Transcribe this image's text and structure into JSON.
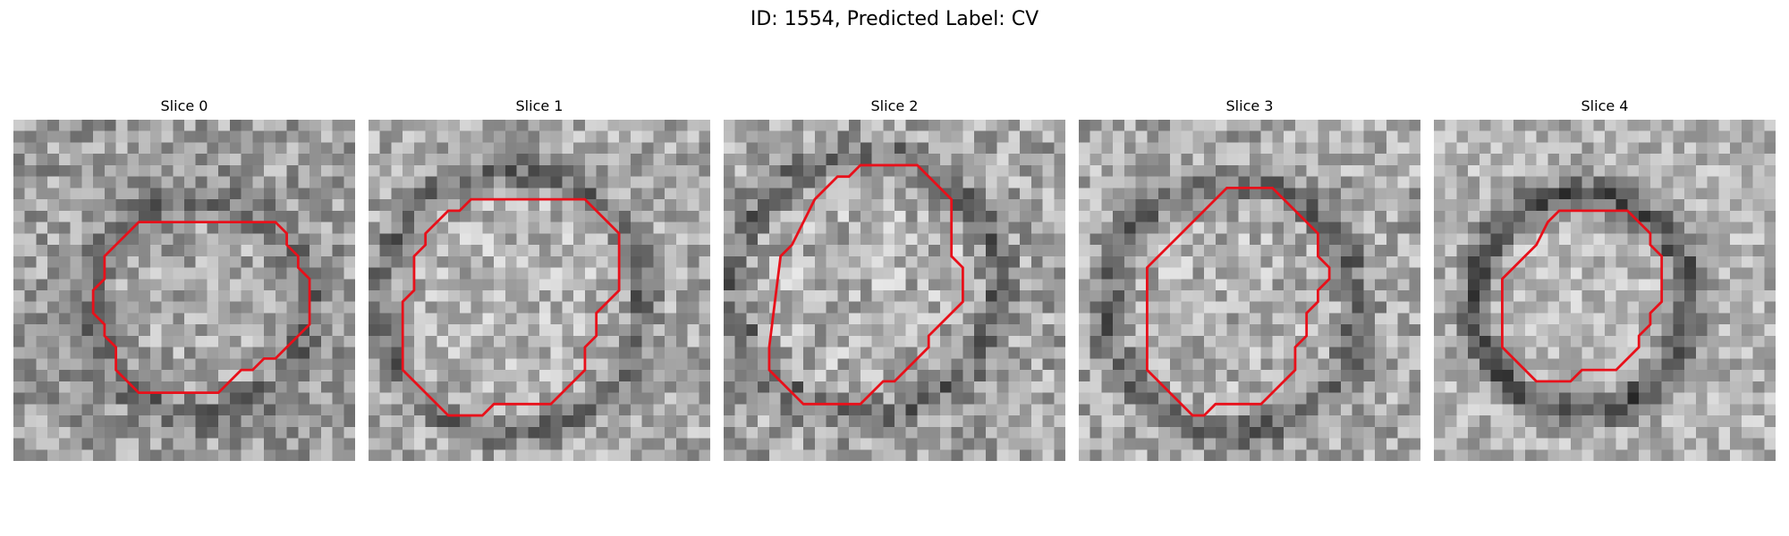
{
  "figure": {
    "title": "ID: 1554, Predicted Label: CV"
  },
  "colors": {
    "contour": "#e8101a",
    "background": "#ffffff"
  },
  "slices": [
    {
      "title": "Slice 0",
      "seed": 11,
      "base": 158,
      "ringDark": 45,
      "innerBright": 8,
      "noise": 52,
      "contour": [
        [
          17,
          9
        ],
        [
          23,
          9
        ],
        [
          24,
          10
        ],
        [
          24,
          11
        ],
        [
          25,
          12
        ],
        [
          25,
          13
        ],
        [
          26,
          14
        ],
        [
          26,
          18
        ],
        [
          25,
          19
        ],
        [
          24,
          20
        ],
        [
          23,
          21
        ],
        [
          22,
          21
        ],
        [
          21,
          22
        ],
        [
          20,
          22
        ],
        [
          19,
          23
        ],
        [
          18,
          24
        ],
        [
          14,
          24
        ],
        [
          13,
          24
        ],
        [
          11,
          24
        ],
        [
          10,
          23
        ],
        [
          9,
          22
        ],
        [
          9,
          20
        ],
        [
          8,
          19
        ],
        [
          8,
          18
        ],
        [
          7,
          17
        ],
        [
          7,
          15
        ],
        [
          8,
          14
        ],
        [
          8,
          12
        ],
        [
          9,
          11
        ],
        [
          10,
          10
        ],
        [
          11,
          9
        ],
        [
          12,
          9
        ]
      ],
      "ring": {
        "cx": 16.5,
        "cy": 16.5,
        "r": 9.5
      }
    },
    {
      "title": "Slice 1",
      "seed": 23,
      "base": 170,
      "ringDark": 60,
      "innerBright": 10,
      "noise": 50,
      "contour": [
        [
          11,
          7
        ],
        [
          19,
          7
        ],
        [
          20,
          8
        ],
        [
          21,
          9
        ],
        [
          22,
          10
        ],
        [
          22,
          15
        ],
        [
          21,
          16
        ],
        [
          20,
          17
        ],
        [
          20,
          19
        ],
        [
          19,
          20
        ],
        [
          19,
          22
        ],
        [
          18,
          23
        ],
        [
          17,
          24
        ],
        [
          16,
          25
        ],
        [
          11,
          25
        ],
        [
          10,
          26
        ],
        [
          7,
          26
        ],
        [
          6,
          25
        ],
        [
          5,
          24
        ],
        [
          4,
          23
        ],
        [
          3,
          22
        ],
        [
          3,
          16
        ],
        [
          4,
          15
        ],
        [
          4,
          12
        ],
        [
          5,
          11
        ],
        [
          5,
          10
        ],
        [
          6,
          9
        ],
        [
          7,
          8
        ],
        [
          8,
          8
        ],
        [
          9,
          7
        ]
      ],
      "ring": {
        "cx": 12.5,
        "cy": 16,
        "r": 11.5
      }
    },
    {
      "title": "Slice 2",
      "seed": 37,
      "base": 165,
      "ringDark": 55,
      "innerBright": 12,
      "noise": 55,
      "contour": [
        [
          12,
          4
        ],
        [
          17,
          4
        ],
        [
          18,
          5
        ],
        [
          19,
          6
        ],
        [
          20,
          7
        ],
        [
          20,
          12
        ],
        [
          21,
          13
        ],
        [
          21,
          16
        ],
        [
          20,
          17
        ],
        [
          19,
          18
        ],
        [
          18,
          19
        ],
        [
          18,
          20
        ],
        [
          17,
          21
        ],
        [
          16,
          22
        ],
        [
          15,
          23
        ],
        [
          14,
          23
        ],
        [
          13,
          24
        ],
        [
          12,
          25
        ],
        [
          8,
          25
        ],
        [
          7,
          25
        ],
        [
          6,
          24
        ],
        [
          5,
          23
        ],
        [
          4,
          22
        ],
        [
          4,
          20
        ],
        [
          5,
          12
        ],
        [
          6,
          11
        ],
        [
          7,
          9
        ],
        [
          8,
          7
        ],
        [
          9,
          6
        ],
        [
          10,
          5
        ],
        [
          11,
          5
        ]
      ],
      "ring": {
        "cx": 12.5,
        "cy": 14.5,
        "r": 11.5
      }
    },
    {
      "title": "Slice 3",
      "seed": 51,
      "base": 168,
      "ringDark": 58,
      "innerBright": 9,
      "noise": 52,
      "contour": [
        [
          13,
          6
        ],
        [
          17,
          6
        ],
        [
          18,
          7
        ],
        [
          19,
          8
        ],
        [
          20,
          9
        ],
        [
          21,
          10
        ],
        [
          21,
          12
        ],
        [
          22,
          13
        ],
        [
          22,
          14
        ],
        [
          21,
          15
        ],
        [
          21,
          16
        ],
        [
          20,
          17
        ],
        [
          20,
          19
        ],
        [
          19,
          20
        ],
        [
          19,
          22
        ],
        [
          18,
          23
        ],
        [
          17,
          24
        ],
        [
          16,
          25
        ],
        [
          12,
          25
        ],
        [
          11,
          26
        ],
        [
          10,
          26
        ],
        [
          9,
          25
        ],
        [
          8,
          24
        ],
        [
          7,
          23
        ],
        [
          6,
          22
        ],
        [
          6,
          13
        ],
        [
          7,
          12
        ],
        [
          8,
          11
        ],
        [
          9,
          10
        ],
        [
          10,
          9
        ],
        [
          11,
          8
        ],
        [
          12,
          7
        ]
      ],
      "ring": {
        "cx": 13.5,
        "cy": 16.5,
        "r": 11
      }
    },
    {
      "title": "Slice 4",
      "seed": 67,
      "base": 178,
      "ringDark": 95,
      "innerBright": 6,
      "noise": 45,
      "contour": [
        [
          11,
          8
        ],
        [
          17,
          8
        ],
        [
          18,
          9
        ],
        [
          19,
          10
        ],
        [
          19,
          11
        ],
        [
          20,
          12
        ],
        [
          20,
          16
        ],
        [
          19,
          17
        ],
        [
          19,
          18
        ],
        [
          18,
          19
        ],
        [
          18,
          20
        ],
        [
          17,
          21
        ],
        [
          16,
          22
        ],
        [
          13,
          22
        ],
        [
          12,
          23
        ],
        [
          10,
          23
        ],
        [
          9,
          23
        ],
        [
          8,
          22
        ],
        [
          7,
          21
        ],
        [
          6,
          20
        ],
        [
          6,
          14
        ],
        [
          7,
          13
        ],
        [
          8,
          12
        ],
        [
          9,
          11
        ],
        [
          10,
          9
        ]
      ],
      "ring": {
        "cx": 13,
        "cy": 16,
        "r": 9.5
      }
    }
  ]
}
